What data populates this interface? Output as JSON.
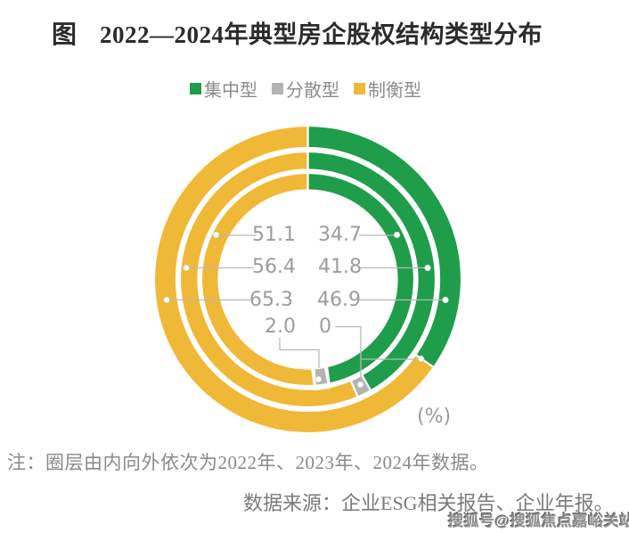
{
  "header": {
    "figure_label": "图",
    "title": "2022—2024年典型房企股权结构类型分布"
  },
  "legend": {
    "items": [
      {
        "label": "集中型",
        "color": "#1F9D4B"
      },
      {
        "label": "分散型",
        "color": "#B3B3B3"
      },
      {
        "label": "制衡型",
        "color": "#F0B837"
      }
    ]
  },
  "chart_data": {
    "type": "donut",
    "subtype": "three-concentric-rings",
    "unit_label": "(%)",
    "series": [
      "集中型",
      "分散型",
      "制衡型"
    ],
    "colors": {
      "集中型": "#1F9D4B",
      "分散型": "#B3B3B3",
      "制衡型": "#F0B837"
    },
    "ring_order_note": "圈层由内向外依次为2022年、2023年、2024年",
    "rings": [
      {
        "year": "2022",
        "ring": "inner",
        "values": {
          "集中型": 46.9,
          "分散型": 2.0,
          "制衡型": 51.1
        }
      },
      {
        "year": "2023",
        "ring": "middle",
        "values": {
          "集中型": 41.8,
          "分散型": 1.8,
          "制衡型": 56.4
        }
      },
      {
        "year": "2024",
        "ring": "outer",
        "values": {
          "集中型": 34.7,
          "分散型": 0,
          "制衡型": 65.3
        }
      }
    ],
    "label_rows": [
      {
        "left": "51.1",
        "right": "34.7"
      },
      {
        "left": "56.4",
        "right": "41.8"
      },
      {
        "left": "65.3",
        "right": "46.9"
      },
      {
        "left": "2.0",
        "right": "0"
      }
    ]
  },
  "notes": {
    "note": "注：圈层由内向外依次为2022年、2023年、2024年数据。",
    "source": "数据来源：企业ESG相关报告、企业年报。"
  },
  "watermark": {
    "text": "搜狐号@搜狐焦点嘉峪关站"
  }
}
